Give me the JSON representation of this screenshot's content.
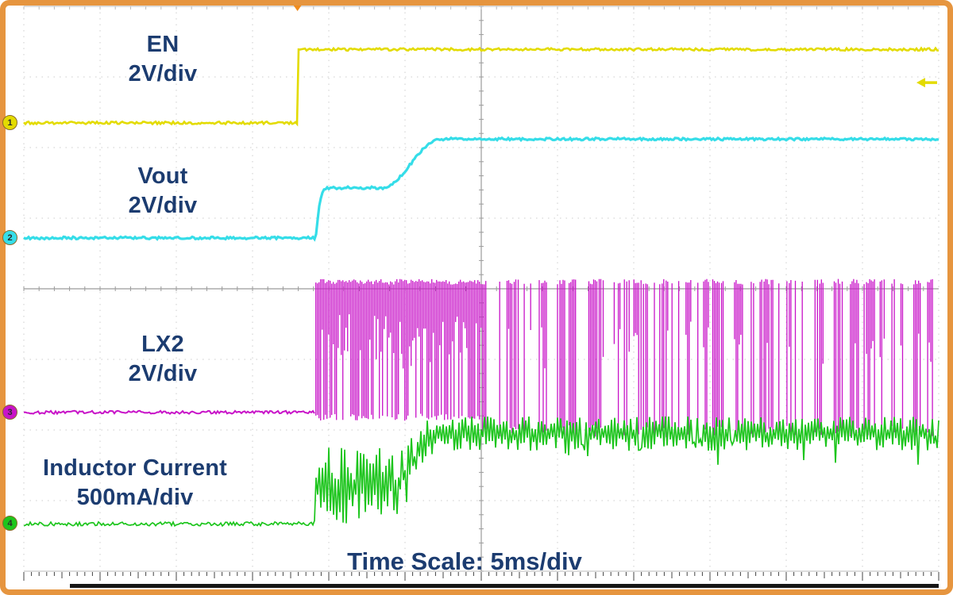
{
  "scope": {
    "time_scale_label": "Time Scale: 5ms/div",
    "channel_labels": [
      {
        "num": "1",
        "name": "EN",
        "scale": "2V/div"
      },
      {
        "num": "2",
        "name": "Vout",
        "scale": "2V/div"
      },
      {
        "num": "3",
        "name": "LX2",
        "scale": "2V/div"
      },
      {
        "num": "4",
        "name": "Inductor Current",
        "scale": "500mA/div"
      }
    ]
  },
  "style": {
    "frame_color": "#e6953f",
    "grid_color": "#cccccc",
    "center_line_color": "#9b9b9b",
    "tick_color": "#bbbbbb",
    "ruler_color": "#444444",
    "ruler_bar_color": "#161616",
    "label_color": "#1c3c70",
    "trigger_color": "#f08c1e",
    "background": "#ffffff"
  },
  "chart_data": {
    "type": "line",
    "title": "Power converter startup waveform (oscilloscope capture)",
    "x_axis": {
      "label": "Time",
      "scale": "5ms/div",
      "divisions": 12
    },
    "y_axis": {
      "divisions": 8
    },
    "grid": true,
    "channels": [
      {
        "num": 1,
        "name": "EN",
        "scale": "2V/div",
        "color": "#e3db00",
        "kind": "step",
        "marker_div": 1.65,
        "low_div": 1.65,
        "high_div": 0.61,
        "rise_t_div": 3.59,
        "trigger_level_div": 1.08,
        "description": "Enable signal steps high ~3.6 divisions (~18ms) from left edge"
      },
      {
        "num": 2,
        "name": "Vout",
        "scale": "2V/div",
        "color": "#35dde8",
        "kind": "softstart",
        "marker_div": 3.28,
        "low_div": 3.28,
        "mid_div": 2.57,
        "high_div": 1.88,
        "t_rise_div": 3.83,
        "t_mid_end_div": 4.69,
        "t_full_div": 5.47,
        "description": "Output rises in two soft-start steps after EN asserts"
      },
      {
        "num": 3,
        "name": "LX2",
        "scale": "2V/div",
        "color": "#c813c8",
        "kind": "switching",
        "marker_div": 5.75,
        "base_div": 5.75,
        "top_div": 3.9,
        "bottom_div": 5.82,
        "t_start_div": 3.83,
        "t_mode_change_div": 6.0,
        "mode2_bottom_div": 6.02,
        "description": "Switch node: dense PWM after startup, sparser pulse pattern after ~6 divisions"
      },
      {
        "num": 4,
        "name": "Inductor Current",
        "scale": "500mA/div",
        "color": "#1dc51d",
        "kind": "current",
        "marker_div": 7.33,
        "base_div": 7.33,
        "phase1_mean_div": 6.78,
        "phase1_amp_div": 0.48,
        "t_start_div": 3.81,
        "t_ramp_start_div": 4.79,
        "t_settle_div": 5.47,
        "steady_mean_div": 6.05,
        "steady_amp_div": 0.2,
        "description": "Inductor current ramps up with ripple then settles ~1.3 divisions above baseline"
      }
    ]
  }
}
